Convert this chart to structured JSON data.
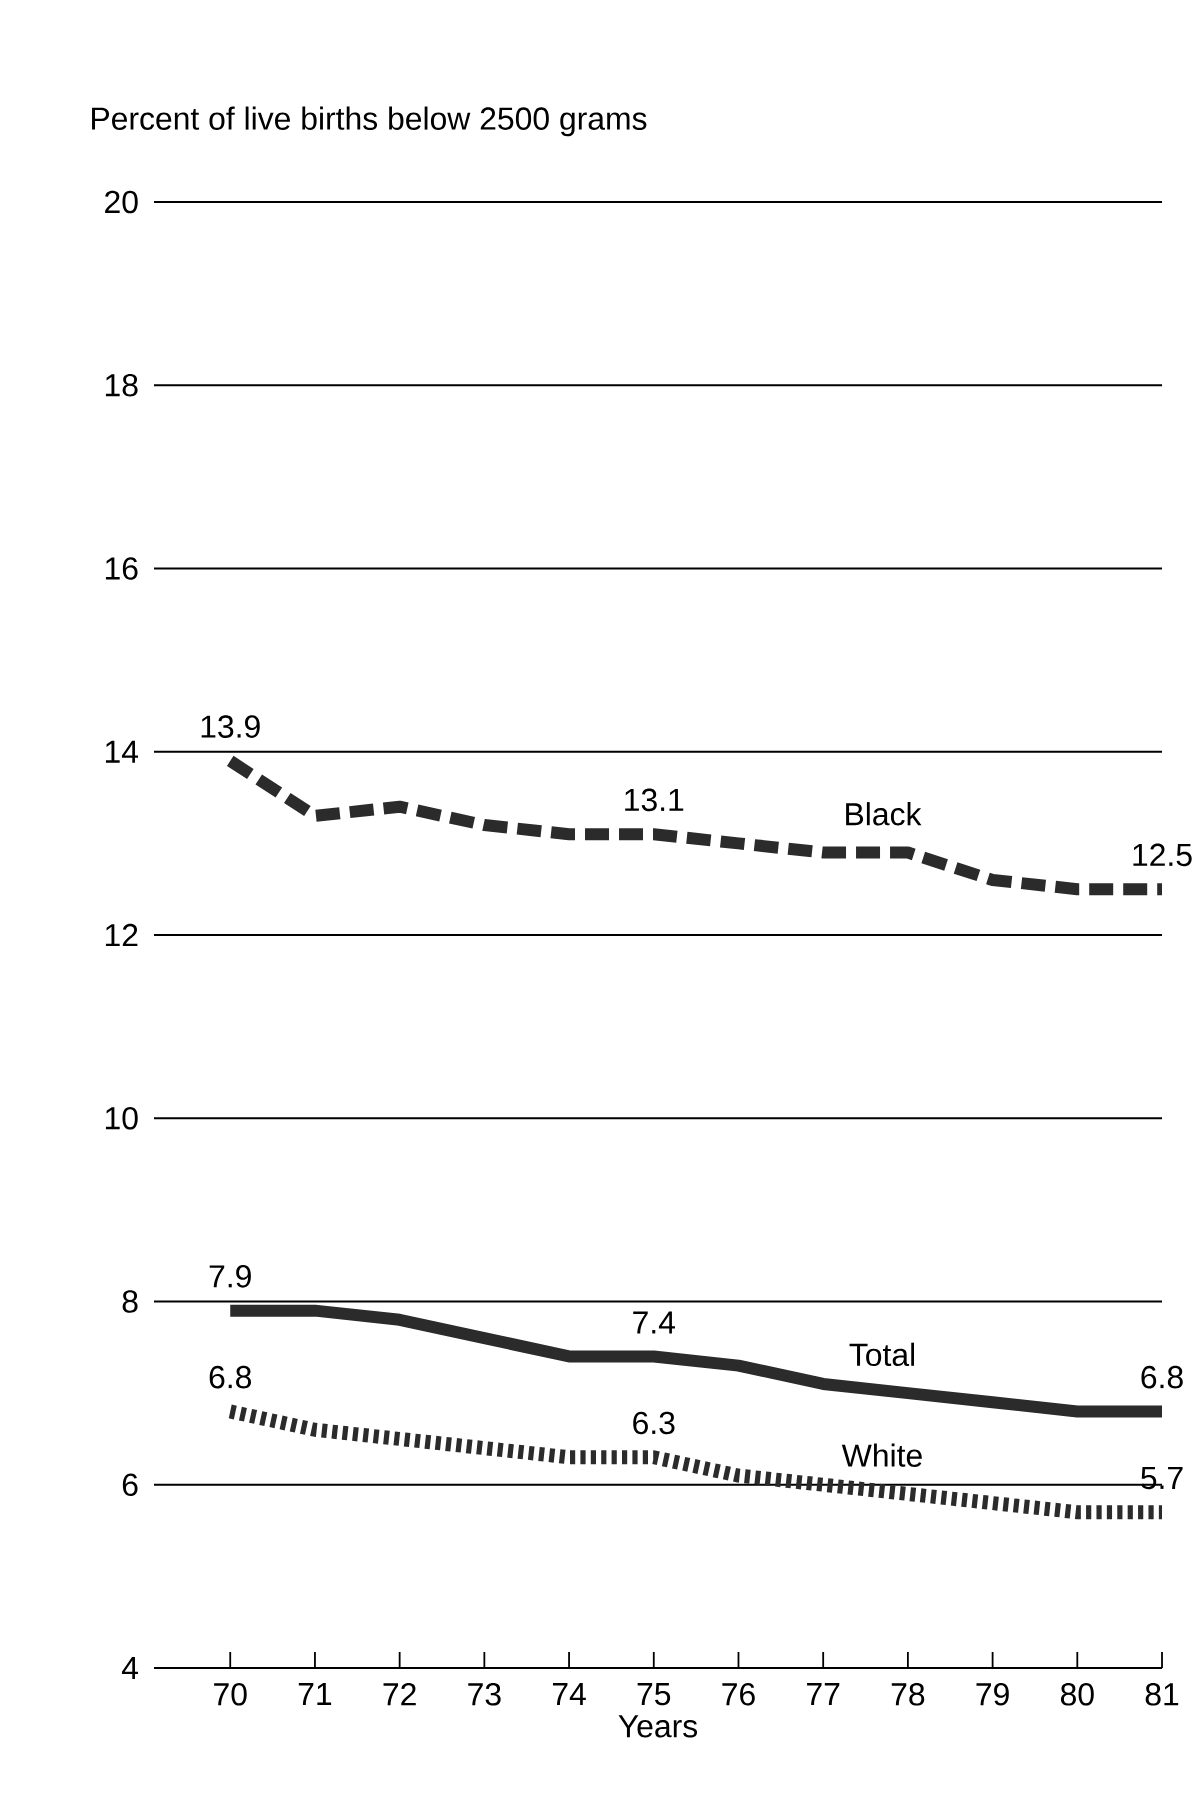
{
  "chart_data": {
    "type": "line",
    "ylabel": "Percent of live births below 2500 grams",
    "xlabel": "Years",
    "x": [
      70,
      71,
      72,
      73,
      74,
      75,
      76,
      77,
      78,
      79,
      80,
      81
    ],
    "xlim": [
      69.1,
      81
    ],
    "xticks": [
      70,
      71,
      72,
      73,
      74,
      75,
      76,
      77,
      78,
      79,
      80,
      81
    ],
    "ylim": [
      4,
      20
    ],
    "yticks": [
      4,
      6,
      8,
      10,
      12,
      14,
      16,
      18,
      20
    ],
    "grid": "y",
    "series": [
      {
        "name": "Black",
        "color": "#2b2b2b",
        "line_style": "dashed",
        "values": [
          13.9,
          13.3,
          13.4,
          13.2,
          13.1,
          13.1,
          13.0,
          12.9,
          12.9,
          12.6,
          12.5,
          12.5
        ],
        "value_labels": [
          "13.9",
          null,
          null,
          null,
          null,
          "13.1",
          null,
          null,
          null,
          null,
          null,
          "12.5"
        ]
      },
      {
        "name": "Total",
        "color": "#2b2b2b",
        "line_style": "solid",
        "values": [
          7.9,
          7.9,
          7.8,
          7.6,
          7.4,
          7.4,
          7.3,
          7.1,
          7.0,
          6.9,
          6.8,
          6.8
        ],
        "value_labels": [
          "7.9",
          null,
          null,
          null,
          null,
          "7.4",
          null,
          null,
          null,
          null,
          null,
          "6.8"
        ]
      },
      {
        "name": "White",
        "color": "#2b2b2b",
        "line_style": "dotted",
        "values": [
          6.8,
          6.6,
          6.5,
          6.4,
          6.3,
          6.3,
          6.1,
          6.0,
          5.9,
          5.8,
          5.7,
          5.7
        ],
        "value_labels": [
          "6.8",
          null,
          null,
          null,
          null,
          "6.3",
          null,
          null,
          null,
          null,
          null,
          "5.7"
        ]
      }
    ]
  }
}
